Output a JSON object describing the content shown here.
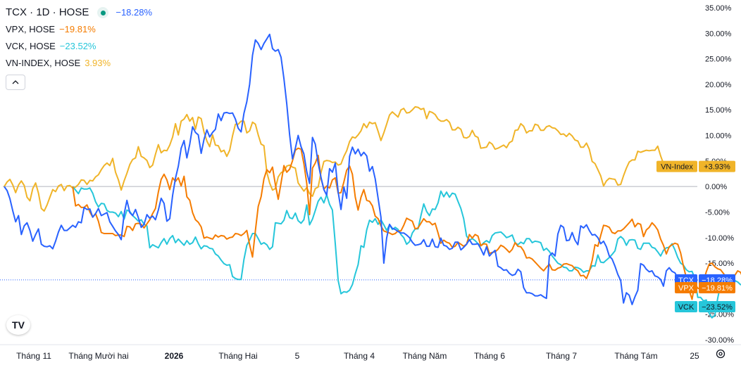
{
  "legend": {
    "symbol": "TCX · 1D · HOSE",
    "symbol_change": "−18.28%",
    "items": [
      {
        "name": "VPX, HOSE",
        "change": "−19.81%",
        "color": "#f57c00"
      },
      {
        "name": "VCK, HOSE",
        "change": "−23.52%",
        "color": "#26c6da"
      },
      {
        "name": "VN-INDEX, HOSE",
        "change": "3.93%",
        "color": "#f0b429"
      }
    ],
    "collapse_icon": "chevron-up-icon"
  },
  "logo": "TV",
  "settings_icon": "gear-icon",
  "chart_data": {
    "type": "line",
    "y_unit": "%",
    "ylim": [
      -30,
      35
    ],
    "y_ticks": [
      "35.00%",
      "30.00%",
      "25.00%",
      "20.00%",
      "15.00%",
      "10.00%",
      "5.00%",
      "0.00%",
      "-5.00%",
      "-10.00%",
      "-15.00%",
      "-20.00%",
      "-25.00%",
      "-30.00%"
    ],
    "x_ticks": [
      "Tháng 11",
      "Tháng Mười hai",
      "2026",
      "Tháng Hai",
      "5",
      "Tháng 4",
      "Tháng Năm",
      "Tháng 6",
      "Tháng 7",
      "Tháng Tám",
      "25"
    ],
    "badges": [
      {
        "label": "VN-Index",
        "value": "+3.93%",
        "color": "#f0b429",
        "text_color": "#131722",
        "y": 3.93
      },
      {
        "label": "TCX",
        "value": "−18.28%",
        "color": "#2962ff",
        "text_color": "#ffffff",
        "y": -18.28
      },
      {
        "label": "VPX",
        "value": "−19.81%",
        "color": "#f57c00",
        "text_color": "#ffffff",
        "y": -19.81
      },
      {
        "label": "VCK",
        "value": "−23.52%",
        "color": "#26c6da",
        "text_color": "#131722",
        "y": -23.52
      }
    ],
    "series": [
      {
        "name": "VN-Index",
        "color": "#f0b429",
        "start_index": 0,
        "values": [
          0,
          0.9,
          1.4,
          0.3,
          -1.2,
          0.3,
          1.1,
          0.2,
          -2.1,
          -2.8,
          -0.4,
          0.7,
          -1.3,
          -4.3,
          -4.8,
          -3.6,
          -2.1,
          -0.6,
          -1.0,
          0.1,
          0.4,
          -0.8,
          0.1,
          0.2,
          -0.3,
          -0.1,
          0.4,
          1.3,
          1.2,
          0.4,
          1.2,
          1.1,
          1.9,
          2.3,
          3.3,
          4.1,
          4.6,
          4.1,
          5.5,
          2.8,
          1.3,
          -0.7,
          1.1,
          2.6,
          4.3,
          5.3,
          5.6,
          7.8,
          5.9,
          5.6,
          5.1,
          3.7,
          4.2,
          6.3,
          8.2,
          6.6,
          7.1,
          7.0,
          8.1,
          9.7,
          12.3,
          10.1,
          12.8,
          13.2,
          14.1,
          12.8,
          13.5,
          11.2,
          13.6,
          13.3,
          10.7,
          8.9,
          7.8,
          10.1,
          8.1,
          8.0,
          6.8,
          7.1,
          5.9,
          7.1,
          9.9,
          12.2,
          12.2,
          12.8,
          12.8,
          10.5,
          10.9,
          12.6,
          12.2,
          10.1,
          8.3,
          8.0,
          2.8,
          0.7,
          -0.7,
          -0.4,
          1.9,
          2.7,
          3.0,
          4.0,
          4.2,
          3.8,
          3.6,
          0.7,
          -0.1,
          -0.9,
          -0.2,
          -1.4,
          -1.9,
          -0.4,
          -0.1,
          2.7,
          4.9,
          5.1,
          5.0,
          4.7,
          4.8,
          4.2,
          4.4,
          5.9,
          7.0,
          8.8,
          9.7,
          9.5,
          10.1,
          10.9,
          12.3,
          11.5,
          12.6,
          12.3,
          12.5,
          10.8,
          9.0,
          10.5,
          12.2,
          14.0,
          14.6,
          14.1,
          13.6,
          15.0,
          15.3,
          14.4,
          14.5,
          15.0,
          15.6,
          15.5,
          15.1,
          15.3,
          13.3,
          14.7,
          14.5,
          14.1,
          13.2,
          12.8,
          12.8,
          13.1,
          12.6,
          11.1,
          11.1,
          11.6,
          11.2,
          9.6,
          9.5,
          9.8,
          11.0,
          9.9,
          9.6,
          7.5,
          7.6,
          7.7,
          8.7,
          8.3,
          7.3,
          7.5,
          7.8,
          8.1,
          7.6,
          8.6,
          8.9,
          11.0,
          11.1,
          12.3,
          11.8,
          10.5,
          10.9,
          10.9,
          12.2,
          12.0,
          11.0,
          11.0,
          11.7,
          11.9,
          11.5,
          11.4,
          10.9,
          10.2,
          10.3,
          9.8,
          10.4,
          9.9,
          9.1,
          8.9,
          7.7,
          7.7,
          8.5,
          7.3,
          4.9,
          4.5,
          3.3,
          2.1,
          0.1,
          1.1,
          1.6,
          1.5,
          1.4,
          0.3,
          0.4,
          2.1,
          3.6,
          4.8,
          5.2,
          5.2,
          6.9,
          6.7,
          6.9,
          7.1,
          7.0,
          7.1,
          7.1,
          7.9,
          6.0,
          4.5,
          3.9
        ]
      },
      {
        "name": "TCX",
        "color": "#2962ff",
        "start_index": 0,
        "values": [
          0,
          -0.8,
          -2.4,
          -4.8,
          -6.9,
          -5.7,
          -9.4,
          -7.7,
          -7.1,
          -8.6,
          -10.7,
          -9.4,
          -8.3,
          -11.3,
          -11.7,
          -11.8,
          -11.6,
          -12.2,
          -10.7,
          -8.9,
          -7.6,
          -8.6,
          -8.6,
          -8.1,
          -7.6,
          -8.0,
          -6.9,
          -7.1,
          -4.1,
          -4.5,
          -4.4,
          -6.0,
          -5.3,
          -4.3,
          -5.7,
          -5.4,
          -5.1,
          -6.9,
          -7.8,
          -8.7,
          -9.4,
          -10.4,
          -5.4,
          -2.7,
          -5.1,
          -5.7,
          -4.5,
          -6.1,
          -8.0,
          -7.4,
          -5.5,
          -6.2,
          -5.8,
          -6.5,
          -4.6,
          -2.3,
          -3.3,
          -6.8,
          -6.3,
          -1.7,
          1.6,
          4.0,
          7.5,
          9.0,
          5.6,
          8.3,
          11.7,
          10.6,
          10.1,
          6.5,
          9.2,
          11.1,
          9.7,
          10.6,
          11.2,
          14.2,
          12.9,
          14.4,
          14.5,
          14.3,
          14.4,
          13.2,
          11.4,
          10.7,
          14.3,
          16.6,
          20.0,
          25.7,
          28.7,
          28.0,
          26.8,
          28.0,
          28.9,
          29.8,
          27.0,
          26.5,
          26.8,
          25.3,
          21.1,
          16.2,
          10.1,
          5.4,
          7.5,
          10.0,
          7.8,
          6.4,
          2.9,
          0.6,
          9.6,
          8.3,
          4.6,
          1.8,
          -0.6,
          -1.7,
          3.5,
          2.8,
          4.6,
          -1.1,
          -4.5,
          -0.1,
          -2.3,
          5.9,
          7.7,
          6.4,
          7.3,
          6.0,
          6.7,
          6.0,
          3.0,
          3.9,
          1.5,
          -2.3,
          -6.0,
          -15.0,
          -10.1,
          -7.4,
          -8.2,
          -8.4,
          -8.8,
          -9.1,
          -9.1,
          -9.5,
          -10.0,
          -10.9,
          -11.5,
          -11.4,
          -11.2,
          -10.4,
          -11.7,
          -11.7,
          -10.3,
          -11.8,
          -11.9,
          -10.1,
          -11.5,
          -11.7,
          -12.3,
          -12.1,
          -10.9,
          -10.9,
          -12.4,
          -11.9,
          -11.3,
          -10.4,
          -11.3,
          -11.3,
          -11.2,
          -12.2,
          -13.4,
          -11.8,
          -13.6,
          -13.0,
          -12.5,
          -15.6,
          -15.9,
          -16.4,
          -16.3,
          -17.0,
          -17.4,
          -17.2,
          -16.2,
          -16.7,
          -19.8,
          -20.8,
          -20.8,
          -21.0,
          -21.4,
          -21.4,
          -21.2,
          -21.6,
          -21.9,
          -13.6,
          -13.0,
          -13.6,
          -9.3,
          -7.6,
          -8.0,
          -10.6,
          -10.5,
          -9.0,
          -10.5,
          -11.4,
          -7.7,
          -8.1,
          -7.5,
          -8.6,
          -9.5,
          -9.4,
          -10.0,
          -11.2,
          -10.7,
          -11.8,
          -13.6,
          -14.2,
          -15.6,
          -17.2,
          -18.4,
          -22.8,
          -20.8,
          -21.3,
          -23.1,
          -21.6,
          -20.3,
          -15.1,
          -15.4,
          -16.2,
          -16.7,
          -16.5,
          -17.5,
          -17.7,
          -18.2,
          -19.5,
          -16.5,
          -15.9,
          -16.6,
          -16.9,
          -17.9,
          -19.3,
          -19.5,
          -18.3,
          -18.9,
          -18.3,
          -18.4,
          -18.28
        ]
      },
      {
        "name": "VPX",
        "color": "#f57c00",
        "start_index": 24,
        "values": [
          0,
          -3.8,
          -3.5,
          -4.1,
          -4.1,
          -3.6,
          -5.0,
          -6.0,
          -5.3,
          -6.8,
          -9.0,
          -9.2,
          -9.2,
          -9.2,
          -9.2,
          -9.6,
          -9.5,
          -9.5,
          -9.8,
          -7.8,
          -7.9,
          -8.6,
          -7.3,
          -7.2,
          -7.4,
          -8.1,
          -7.3,
          -6.5,
          -5.3,
          -4.3,
          -1.1,
          1.4,
          2.4,
          1.3,
          -0.6,
          1.7,
          1.0,
          1.7,
          0.1,
          2.0,
          -2.0,
          -2.7,
          -5.1,
          -6.5,
          -7.0,
          -7.9,
          -10.1,
          -9.9,
          -10.1,
          -10.3,
          -9.5,
          -9.9,
          -9.6,
          -9.7,
          -10.3,
          -10.0,
          -9.9,
          -9.2,
          -9.3,
          -9.6,
          -9.2,
          -8.6,
          -11.4,
          -13.8,
          -8.6,
          -3.9,
          -2.0,
          1.5,
          3.3,
          2.7,
          3.8,
          0.4,
          -2.5,
          0.7,
          4.1,
          2.8,
          3.4,
          5.0,
          7.1,
          7.5,
          7.3,
          4.5,
          0.6,
          -5.5,
          3.6,
          4.6,
          6.1,
          1.6,
          -0.5,
          0.1,
          -0.3,
          1.3,
          1.7,
          -1.3,
          -1.2,
          0.9,
          3.2,
          4.0,
          2.4,
          -2.1,
          -4.6,
          -2.1,
          -0.6,
          -2.7,
          -2.9,
          -3.8,
          -5.8,
          -6.3,
          -7.7,
          -8.7,
          -8.9,
          -9.1,
          -9.4,
          -9.2,
          -8.7,
          -8.7,
          -7.6,
          -6.2,
          -6.5,
          -6.8,
          -8.3,
          -8.1,
          -7.2,
          -6.3,
          -6.9,
          -6.9,
          -7.5,
          -7.2,
          -9.1,
          -11.1,
          -10.5,
          -10.9,
          -11.1,
          -11.9,
          -11.7,
          -10.9,
          -11.3,
          -11.7,
          -11.3,
          -9.4,
          -10.1,
          -9.4,
          -9.7,
          -11.6,
          -11.2,
          -11.3,
          -13.1,
          -12.9,
          -12.8,
          -12.3,
          -11.5,
          -11.8,
          -12.3,
          -12.9,
          -12.3,
          -11.0,
          -11.7,
          -11.8,
          -12.6,
          -14.0,
          -13.9,
          -14.2,
          -14.8,
          -15.4,
          -16.0,
          -16.5,
          -15.8,
          -15.2,
          -16.3,
          -16.4,
          -16.0,
          -15.8,
          -15.2,
          -15.1,
          -15.3,
          -15.5,
          -16.1,
          -16.5,
          -17.5,
          -17.4,
          -18.0,
          -16.6,
          -14.5,
          -11.4,
          -11.7,
          -9.6,
          -7.6,
          -7.7,
          -8.0,
          -9.0,
          -9.2,
          -8.7,
          -8.7,
          -8.3,
          -7.7,
          -7.1,
          -6.4,
          -7.9,
          -7.2,
          -7.4,
          -9.8,
          -8.5,
          -8.0,
          -7.1,
          -7.7,
          -8.5,
          -10.3,
          -11.5,
          -13.2,
          -11.8,
          -11.4,
          -11.1,
          -11.3,
          -13.0,
          -15.6,
          -17.9,
          -20.3,
          -22.1,
          -19.0,
          -19.9,
          -20.1,
          -18.6,
          -16.7,
          -15.2,
          -15.0,
          -15.7,
          -16.1,
          -16.3,
          -17.0,
          -17.8,
          -17.7,
          -18.6,
          -17.4,
          -16.5,
          -16.8,
          -18.0,
          -18.6,
          -19.5,
          -20.3,
          -19.0,
          -19.81
        ]
      },
      {
        "name": "VCK",
        "color": "#26c6da",
        "start_index": 24,
        "values": [
          0,
          -0.7,
          -1.4,
          -0.3,
          -0.5,
          -0.5,
          -0.3,
          -1.3,
          -3.0,
          -4.0,
          -3.3,
          -3.4,
          -4.7,
          -5.0,
          -5.0,
          -5.2,
          -5.9,
          -4.9,
          -6.4,
          -4.6,
          -4.9,
          -5.7,
          -6.2,
          -6.8,
          -6.5,
          -7.4,
          -7.7,
          -12.0,
          -11.4,
          -11.7,
          -12.0,
          -11.0,
          -10.2,
          -11.3,
          -10.2,
          -9.6,
          -11.0,
          -10.3,
          -10.9,
          -11.5,
          -10.6,
          -11.3,
          -11.0,
          -9.9,
          -11.2,
          -12.2,
          -11.6,
          -11.7,
          -12.1,
          -12.2,
          -13.2,
          -13.6,
          -14.4,
          -15.1,
          -15.4,
          -15.3,
          -17.6,
          -18.0,
          -18.2,
          -18.2,
          -14.3,
          -11.5,
          -10.5,
          -9.2,
          -9.2,
          -10.2,
          -11.3,
          -11.0,
          -11.4,
          -12.3,
          -11.8,
          -7.1,
          -7.2,
          -7.3,
          -6.6,
          -4.7,
          -6.1,
          -6.3,
          -5.2,
          -6.7,
          -7.2,
          -6.5,
          -3.6,
          -7.5,
          -6.4,
          -4.7,
          -2.9,
          -2.1,
          -3.2,
          -1.6,
          -3.5,
          -4.6,
          -11.2,
          -18.4,
          -21.0,
          -20.6,
          -20.7,
          -20.3,
          -19.2,
          -17.1,
          -15.3,
          -11.6,
          -11.9,
          -8.5,
          -6.6,
          -7.0,
          -6.3,
          -7.4,
          -6.5,
          -7.5,
          -8.6,
          -7.5,
          -8.4,
          -8.0,
          -8.4,
          -9.4,
          -10.0,
          -11.3,
          -10.8,
          -9.1,
          -8.3,
          -8.3,
          -5.7,
          -3.4,
          -4.9,
          -5.7,
          -4.4,
          -4.5,
          -3.2,
          -0.9,
          -2.0,
          -1.1,
          -2.1,
          -1.3,
          -1.5,
          -2.9,
          -4.3,
          -6.3,
          -9.7,
          -10.5,
          -10.2,
          -10.6,
          -11.2,
          -11.6,
          -11.0,
          -10.6,
          -11.0,
          -9.6,
          -9.1,
          -9.0,
          -8.9,
          -9.4,
          -10.0,
          -9.8,
          -9.5,
          -11.0,
          -11.4,
          -10.9,
          -11.2,
          -10.2,
          -10.2,
          -11.0,
          -10.7,
          -10.8,
          -11.0,
          -12.5,
          -12.1,
          -12.7,
          -13.6,
          -14.3,
          -15.0,
          -15.3,
          -15.8,
          -15.9,
          -16.5,
          -16.5,
          -15.8,
          -15.9,
          -16.2,
          -16.8,
          -16.5,
          -16.5,
          -15.5,
          -15.6,
          -13.4,
          -14.8,
          -14.9,
          -14.4,
          -13.9,
          -13.3,
          -12.6,
          -10.3,
          -9.8,
          -10.3,
          -11.5,
          -10.5,
          -10.4,
          -10.5,
          -12.1,
          -12.3,
          -11.1,
          -11.1,
          -11.1,
          -11.9,
          -12.1,
          -12.8,
          -13.6,
          -12.5,
          -12.0,
          -11.9,
          -11.2,
          -12.4,
          -13.9,
          -15.0,
          -15.4,
          -16.3,
          -16.7,
          -16.6,
          -18.0,
          -21.7,
          -21.7,
          -22.4,
          -22.2,
          -24.8,
          -25.7,
          -25.2,
          -21.9,
          -19.2,
          -18.5,
          -18.2,
          -18.4,
          -18.0,
          -18.4,
          -18.7,
          -19.2,
          -19.3,
          -18.8,
          -21.5,
          -21.8,
          -22.3,
          -23.2,
          -23.52
        ]
      }
    ]
  }
}
